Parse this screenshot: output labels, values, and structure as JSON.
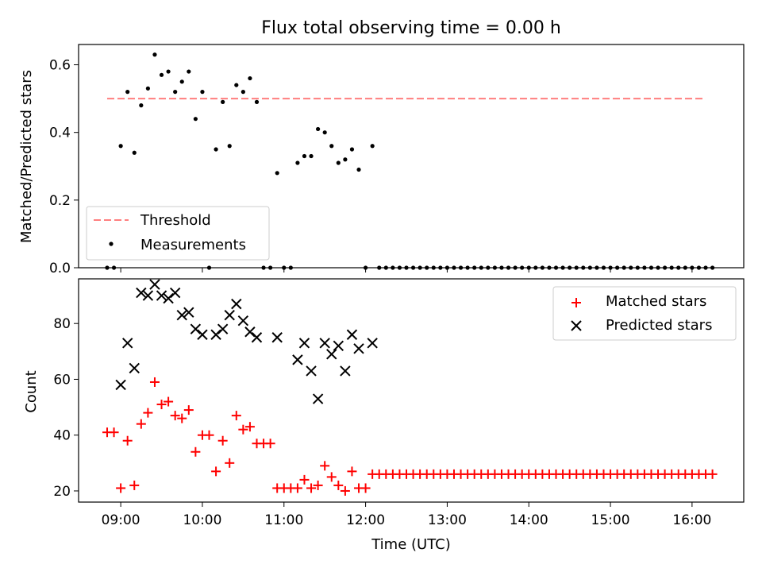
{
  "title": "Flux total observing time = 0.00 h",
  "colors": {
    "threshold": "#ff7f7f",
    "measurements": "#000000",
    "matched": "#ff0000",
    "predicted": "#000000"
  },
  "chart_data": [
    {
      "type": "scatter",
      "title": "Flux total observing time = 0.00 h",
      "xlabel": "",
      "ylabel": "Matched/Predicted stars",
      "xlim": [
        "08:29",
        "16:38"
      ],
      "ylim": [
        0,
        0.66
      ],
      "yticks": [
        "0.0",
        "0.2",
        "0.4",
        "0.6"
      ],
      "grid": false,
      "legend": {
        "position": "lower-left",
        "entries": [
          "Threshold",
          "Measurements"
        ]
      },
      "threshold": {
        "name": "Threshold",
        "value": 0.5,
        "x": [
          "08:50",
          "16:10"
        ],
        "style": "dashed"
      },
      "series": [
        {
          "name": "Measurements",
          "marker": "dot",
          "x": [
            "08:50",
            "08:55",
            "09:00",
            "09:05",
            "09:10",
            "09:15",
            "09:20",
            "09:25",
            "09:30",
            "09:35",
            "09:40",
            "09:45",
            "09:50",
            "09:55",
            "10:00",
            "10:05",
            "10:10",
            "10:15",
            "10:20",
            "10:25",
            "10:30",
            "10:35",
            "10:40",
            "10:45",
            "10:50",
            "10:55",
            "11:00",
            "11:05",
            "11:10",
            "11:15",
            "11:20",
            "11:25",
            "11:30",
            "11:35",
            "11:40",
            "11:45",
            "11:50",
            "11:55",
            "12:00",
            "12:05",
            "12:10",
            "12:15",
            "12:20",
            "12:25",
            "12:30",
            "12:35",
            "12:40",
            "12:45",
            "12:50",
            "12:55",
            "13:00",
            "13:05",
            "13:10",
            "13:15",
            "13:20",
            "13:25",
            "13:30",
            "13:35",
            "13:40",
            "13:45",
            "13:50",
            "13:55",
            "14:00",
            "14:05",
            "14:10",
            "14:15",
            "14:20",
            "14:25",
            "14:30",
            "14:35",
            "14:40",
            "14:45",
            "14:50",
            "14:55",
            "15:00",
            "15:05",
            "15:10",
            "15:15",
            "15:20",
            "15:25",
            "15:30",
            "15:35",
            "15:40",
            "15:45",
            "15:50",
            "15:55",
            "16:00",
            "16:05",
            "16:10",
            "16:15"
          ],
          "y": [
            0,
            0,
            0.36,
            0.52,
            0.34,
            0.48,
            0.53,
            0.63,
            0.57,
            0.58,
            0.52,
            0.55,
            0.58,
            0.44,
            0.52,
            0,
            0.35,
            0.49,
            0.36,
            0.54,
            0.52,
            0.56,
            0.49,
            0,
            0,
            0.28,
            0,
            0,
            0.31,
            0.33,
            0.33,
            0.41,
            0.4,
            0.36,
            0.31,
            0.32,
            0.35,
            0.29,
            0,
            0.36,
            0,
            0,
            0,
            0,
            0,
            0,
            0,
            0,
            0,
            0,
            0,
            0,
            0,
            0,
            0,
            0,
            0,
            0,
            0,
            0,
            0,
            0,
            0,
            0,
            0,
            0,
            0,
            0,
            0,
            0,
            0,
            0,
            0,
            0,
            0,
            0,
            0,
            0,
            0,
            0,
            0,
            0,
            0,
            0,
            0,
            0,
            0,
            0,
            0,
            0
          ]
        }
      ]
    },
    {
      "type": "scatter",
      "xlabel": "Time (UTC)",
      "ylabel": "Count",
      "xlim": [
        "08:29",
        "16:38"
      ],
      "ylim": [
        16,
        96
      ],
      "xticks": [
        "09:00",
        "10:00",
        "11:00",
        "12:00",
        "13:00",
        "14:00",
        "15:00",
        "16:00"
      ],
      "yticks": [
        "20",
        "40",
        "60",
        "80"
      ],
      "grid": false,
      "legend": {
        "position": "top-right",
        "entries": [
          "Matched stars",
          "Predicted stars"
        ]
      },
      "series": [
        {
          "name": "Matched stars",
          "marker": "plus",
          "x": [
            "08:50",
            "08:55",
            "09:00",
            "09:05",
            "09:10",
            "09:15",
            "09:20",
            "09:25",
            "09:30",
            "09:35",
            "09:40",
            "09:45",
            "09:50",
            "09:55",
            "10:00",
            "10:05",
            "10:10",
            "10:15",
            "10:20",
            "10:25",
            "10:30",
            "10:35",
            "10:40",
            "10:45",
            "10:50",
            "10:55",
            "11:00",
            "11:05",
            "11:10",
            "11:15",
            "11:20",
            "11:25",
            "11:30",
            "11:35",
            "11:40",
            "11:45",
            "11:50",
            "11:55",
            "12:00",
            "12:05",
            "12:10",
            "12:15",
            "12:20",
            "12:25",
            "12:30",
            "12:35",
            "12:40",
            "12:45",
            "12:50",
            "12:55",
            "13:00",
            "13:05",
            "13:10",
            "13:15",
            "13:20",
            "13:25",
            "13:30",
            "13:35",
            "13:40",
            "13:45",
            "13:50",
            "13:55",
            "14:00",
            "14:05",
            "14:10",
            "14:15",
            "14:20",
            "14:25",
            "14:30",
            "14:35",
            "14:40",
            "14:45",
            "14:50",
            "14:55",
            "15:00",
            "15:05",
            "15:10",
            "15:15",
            "15:20",
            "15:25",
            "15:30",
            "15:35",
            "15:40",
            "15:45",
            "15:50",
            "15:55",
            "16:00",
            "16:05",
            "16:10",
            "16:15"
          ],
          "y": [
            41,
            41,
            21,
            38,
            22,
            44,
            48,
            59,
            51,
            52,
            47,
            46,
            49,
            34,
            40,
            40,
            27,
            38,
            30,
            47,
            42,
            43,
            37,
            37,
            37,
            21,
            21,
            21,
            21,
            24,
            21,
            22,
            29,
            25,
            22,
            20,
            27,
            21,
            21,
            26,
            26,
            26,
            26,
            26,
            26,
            26,
            26,
            26,
            26,
            26,
            26,
            26,
            26,
            26,
            26,
            26,
            26,
            26,
            26,
            26,
            26,
            26,
            26,
            26,
            26,
            26,
            26,
            26,
            26,
            26,
            26,
            26,
            26,
            26,
            26,
            26,
            26,
            26,
            26,
            26,
            26,
            26,
            26,
            26,
            26,
            26,
            26,
            26,
            26,
            26
          ]
        },
        {
          "name": "Predicted stars",
          "marker": "x",
          "x": [
            "09:00",
            "09:05",
            "09:10",
            "09:15",
            "09:20",
            "09:25",
            "09:30",
            "09:35",
            "09:40",
            "09:45",
            "09:50",
            "09:55",
            "10:00",
            "10:10",
            "10:15",
            "10:20",
            "10:25",
            "10:30",
            "10:35",
            "10:40",
            "10:55",
            "11:10",
            "11:15",
            "11:20",
            "11:25",
            "11:30",
            "11:35",
            "11:40",
            "11:45",
            "11:50",
            "11:55",
            "12:05"
          ],
          "y": [
            58,
            73,
            64,
            91,
            90,
            94,
            90,
            89,
            91,
            83,
            84,
            78,
            76,
            76,
            78,
            83,
            87,
            81,
            77,
            75,
            75,
            67,
            73,
            63,
            53,
            73,
            69,
            72,
            63,
            76,
            71,
            73
          ]
        }
      ]
    }
  ]
}
